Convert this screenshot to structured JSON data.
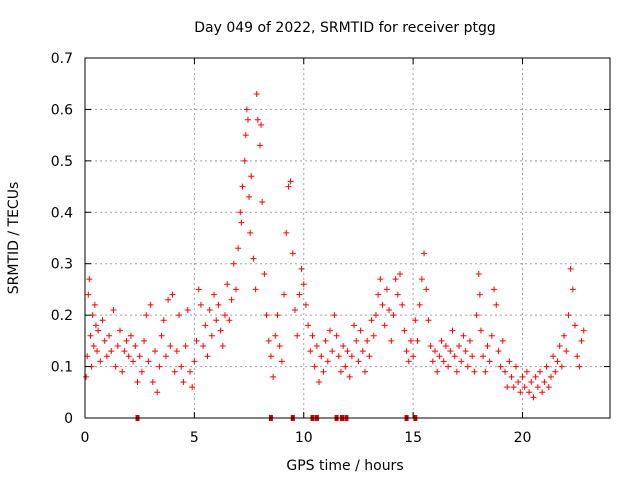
{
  "chart_data": {
    "type": "scatter",
    "title": "Day 049 of 2022, SRMTID for receiver ptgg",
    "xlabel": "GPS time / hours",
    "ylabel": "SRMTID / TECUs",
    "xlim": [
      0,
      24
    ],
    "ylim": [
      0,
      0.7
    ],
    "xticks": [
      "0",
      "5",
      "10",
      "15",
      "20"
    ],
    "xtick_values": [
      0,
      5,
      10,
      15,
      20
    ],
    "yticks": [
      "0",
      "0.1",
      "0.2",
      "0.3",
      "0.4",
      "0.5",
      "0.6",
      "0.7"
    ],
    "ytick_values": [
      0,
      0.1,
      0.2,
      0.3,
      0.4,
      0.5,
      0.6,
      0.7
    ],
    "grid": true,
    "series": [
      {
        "name": "SRMTID",
        "color": "#ff0000",
        "marker": "plus",
        "points": [
          [
            0.05,
            0.08
          ],
          [
            0.1,
            0.12
          ],
          [
            0.15,
            0.24
          ],
          [
            0.2,
            0.27
          ],
          [
            0.25,
            0.16
          ],
          [
            0.3,
            0.1
          ],
          [
            0.35,
            0.2
          ],
          [
            0.4,
            0.14
          ],
          [
            0.45,
            0.22
          ],
          [
            0.5,
            0.18
          ],
          [
            0.55,
            0.13
          ],
          [
            0.6,
            0.17
          ],
          [
            0.7,
            0.11
          ],
          [
            0.8,
            0.19
          ],
          [
            0.9,
            0.15
          ],
          [
            1.0,
            0.12
          ],
          [
            1.1,
            0.16
          ],
          [
            1.2,
            0.13
          ],
          [
            1.3,
            0.21
          ],
          [
            1.4,
            0.1
          ],
          [
            1.5,
            0.14
          ],
          [
            1.6,
            0.17
          ],
          [
            1.7,
            0.09
          ],
          [
            1.8,
            0.13
          ],
          [
            1.9,
            0.15
          ],
          [
            2.0,
            0.12
          ],
          [
            2.1,
            0.16
          ],
          [
            2.2,
            0.11
          ],
          [
            2.3,
            0.14
          ],
          [
            2.4,
            0.07
          ],
          [
            2.5,
            0.12
          ],
          [
            2.6,
            0.09
          ],
          [
            2.7,
            0.15
          ],
          [
            2.8,
            0.2
          ],
          [
            2.9,
            0.11
          ],
          [
            3.0,
            0.22
          ],
          [
            3.1,
            0.07
          ],
          [
            3.2,
            0.13
          ],
          [
            3.3,
            0.05
          ],
          [
            3.4,
            0.1
          ],
          [
            3.5,
            0.16
          ],
          [
            3.6,
            0.19
          ],
          [
            3.7,
            0.12
          ],
          [
            3.8,
            0.23
          ],
          [
            3.9,
            0.14
          ],
          [
            4.0,
            0.24
          ],
          [
            4.1,
            0.09
          ],
          [
            4.2,
            0.13
          ],
          [
            4.3,
            0.2
          ],
          [
            4.4,
            0.1
          ],
          [
            4.5,
            0.07
          ],
          [
            4.6,
            0.14
          ],
          [
            4.7,
            0.21
          ],
          [
            4.8,
            0.09
          ],
          [
            4.9,
            0.06
          ],
          [
            5.0,
            0.11
          ],
          [
            5.1,
            0.15
          ],
          [
            5.2,
            0.25
          ],
          [
            5.3,
            0.22
          ],
          [
            5.4,
            0.14
          ],
          [
            5.5,
            0.18
          ],
          [
            5.6,
            0.12
          ],
          [
            5.7,
            0.21
          ],
          [
            5.8,
            0.16
          ],
          [
            5.9,
            0.24
          ],
          [
            6.0,
            0.19
          ],
          [
            6.1,
            0.22
          ],
          [
            6.2,
            0.17
          ],
          [
            6.3,
            0.14
          ],
          [
            6.4,
            0.2
          ],
          [
            6.5,
            0.26
          ],
          [
            6.6,
            0.19
          ],
          [
            6.7,
            0.23
          ],
          [
            6.8,
            0.3
          ],
          [
            6.9,
            0.25
          ],
          [
            7.0,
            0.33
          ],
          [
            7.1,
            0.4
          ],
          [
            7.15,
            0.38
          ],
          [
            7.2,
            0.45
          ],
          [
            7.3,
            0.5
          ],
          [
            7.35,
            0.55
          ],
          [
            7.4,
            0.6
          ],
          [
            7.45,
            0.58
          ],
          [
            7.5,
            0.43
          ],
          [
            7.55,
            0.36
          ],
          [
            7.6,
            0.47
          ],
          [
            7.7,
            0.31
          ],
          [
            7.8,
            0.25
          ],
          [
            7.85,
            0.63
          ],
          [
            7.9,
            0.58
          ],
          [
            8.0,
            0.53
          ],
          [
            8.05,
            0.57
          ],
          [
            8.1,
            0.42
          ],
          [
            8.2,
            0.28
          ],
          [
            8.3,
            0.2
          ],
          [
            8.4,
            0.15
          ],
          [
            8.5,
            0.12
          ],
          [
            8.6,
            0.08
          ],
          [
            8.7,
            0.16
          ],
          [
            8.8,
            0.2
          ],
          [
            8.9,
            0.14
          ],
          [
            9.0,
            0.11
          ],
          [
            9.1,
            0.24
          ],
          [
            9.2,
            0.36
          ],
          [
            9.3,
            0.45
          ],
          [
            9.4,
            0.46
          ],
          [
            9.5,
            0.32
          ],
          [
            9.6,
            0.21
          ],
          [
            9.7,
            0.16
          ],
          [
            9.8,
            0.24
          ],
          [
            9.9,
            0.29
          ],
          [
            10.0,
            0.26
          ],
          [
            10.1,
            0.22
          ],
          [
            10.2,
            0.18
          ],
          [
            10.3,
            0.13
          ],
          [
            10.4,
            0.16
          ],
          [
            10.5,
            0.1
          ],
          [
            10.6,
            0.14
          ],
          [
            10.7,
            0.07
          ],
          [
            10.8,
            0.12
          ],
          [
            10.9,
            0.09
          ],
          [
            11.0,
            0.15
          ],
          [
            11.1,
            0.11
          ],
          [
            11.2,
            0.17
          ],
          [
            11.3,
            0.13
          ],
          [
            11.4,
            0.2
          ],
          [
            11.5,
            0.16
          ],
          [
            11.6,
            0.12
          ],
          [
            11.7,
            0.09
          ],
          [
            11.8,
            0.14
          ],
          [
            11.9,
            0.1
          ],
          [
            12.0,
            0.13
          ],
          [
            12.1,
            0.08
          ],
          [
            12.2,
            0.12
          ],
          [
            12.3,
            0.18
          ],
          [
            12.4,
            0.15
          ],
          [
            12.5,
            0.11
          ],
          [
            12.6,
            0.17
          ],
          [
            12.7,
            0.13
          ],
          [
            12.8,
            0.09
          ],
          [
            12.9,
            0.15
          ],
          [
            13.0,
            0.12
          ],
          [
            13.1,
            0.19
          ],
          [
            13.2,
            0.16
          ],
          [
            13.3,
            0.2
          ],
          [
            13.4,
            0.24
          ],
          [
            13.5,
            0.27
          ],
          [
            13.6,
            0.22
          ],
          [
            13.7,
            0.18
          ],
          [
            13.8,
            0.25
          ],
          [
            13.9,
            0.21
          ],
          [
            14.0,
            0.15
          ],
          [
            14.1,
            0.2
          ],
          [
            14.2,
            0.27
          ],
          [
            14.3,
            0.24
          ],
          [
            14.4,
            0.28
          ],
          [
            14.5,
            0.22
          ],
          [
            14.6,
            0.17
          ],
          [
            14.7,
            0.13
          ],
          [
            14.8,
            0.11
          ],
          [
            14.9,
            0.15
          ],
          [
            15.0,
            0.12
          ],
          [
            15.1,
            0.19
          ],
          [
            15.2,
            0.15
          ],
          [
            15.3,
            0.22
          ],
          [
            15.4,
            0.27
          ],
          [
            15.5,
            0.32
          ],
          [
            15.6,
            0.25
          ],
          [
            15.7,
            0.19
          ],
          [
            15.8,
            0.14
          ],
          [
            15.9,
            0.11
          ],
          [
            16.0,
            0.13
          ],
          [
            16.1,
            0.09
          ],
          [
            16.2,
            0.12
          ],
          [
            16.3,
            0.15
          ],
          [
            16.4,
            0.11
          ],
          [
            16.5,
            0.14
          ],
          [
            16.6,
            0.1
          ],
          [
            16.7,
            0.13
          ],
          [
            16.8,
            0.17
          ],
          [
            16.9,
            0.12
          ],
          [
            17.0,
            0.09
          ],
          [
            17.1,
            0.14
          ],
          [
            17.2,
            0.11
          ],
          [
            17.3,
            0.16
          ],
          [
            17.4,
            0.13
          ],
          [
            17.5,
            0.1
          ],
          [
            17.6,
            0.15
          ],
          [
            17.7,
            0.12
          ],
          [
            17.8,
            0.09
          ],
          [
            17.9,
            0.2
          ],
          [
            18.0,
            0.28
          ],
          [
            18.05,
            0.24
          ],
          [
            18.1,
            0.17
          ],
          [
            18.2,
            0.12
          ],
          [
            18.3,
            0.09
          ],
          [
            18.4,
            0.14
          ],
          [
            18.5,
            0.11
          ],
          [
            18.6,
            0.16
          ],
          [
            18.7,
            0.25
          ],
          [
            18.8,
            0.22
          ],
          [
            18.9,
            0.13
          ],
          [
            19.0,
            0.1
          ],
          [
            19.1,
            0.15
          ],
          [
            19.2,
            0.09
          ],
          [
            19.3,
            0.06
          ],
          [
            19.4,
            0.11
          ],
          [
            19.5,
            0.08
          ],
          [
            19.6,
            0.06
          ],
          [
            19.7,
            0.1
          ],
          [
            19.8,
            0.07
          ],
          [
            19.9,
            0.05
          ],
          [
            20.0,
            0.08
          ],
          [
            20.1,
            0.06
          ],
          [
            20.2,
            0.09
          ],
          [
            20.3,
            0.05
          ],
          [
            20.4,
            0.07
          ],
          [
            20.5,
            0.04
          ],
          [
            20.6,
            0.08
          ],
          [
            20.7,
            0.06
          ],
          [
            20.8,
            0.09
          ],
          [
            20.9,
            0.05
          ],
          [
            21.0,
            0.07
          ],
          [
            21.1,
            0.1
          ],
          [
            21.2,
            0.06
          ],
          [
            21.3,
            0.08
          ],
          [
            21.4,
            0.12
          ],
          [
            21.5,
            0.09
          ],
          [
            21.6,
            0.11
          ],
          [
            21.7,
            0.14
          ],
          [
            21.8,
            0.1
          ],
          [
            21.9,
            0.16
          ],
          [
            22.0,
            0.13
          ],
          [
            22.1,
            0.2
          ],
          [
            22.2,
            0.29
          ],
          [
            22.3,
            0.25
          ],
          [
            22.4,
            0.18
          ],
          [
            22.5,
            0.12
          ],
          [
            22.6,
            0.1
          ],
          [
            22.7,
            0.15
          ],
          [
            22.8,
            0.17
          ]
        ]
      }
    ],
    "gap_markers": {
      "color": "#cc0000",
      "y": 0,
      "x": [
        2.4,
        8.5,
        9.5,
        10.4,
        10.6,
        11.5,
        11.75,
        11.95,
        14.7,
        15.1
      ]
    }
  }
}
